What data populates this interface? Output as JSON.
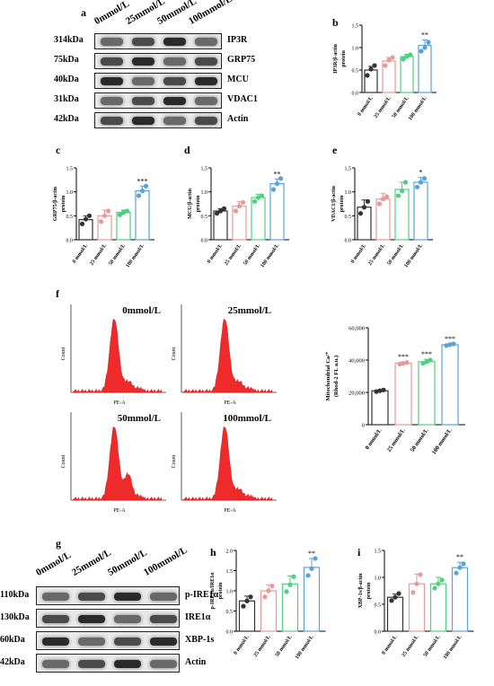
{
  "panels": {
    "a": "a",
    "b": "b",
    "c": "c",
    "d": "d",
    "e": "e",
    "f": "f",
    "g": "g",
    "h": "h",
    "i": "i"
  },
  "concentrations": [
    "0mmol/L",
    "25mmol/L",
    "50mmol/L",
    "100mmol/L"
  ],
  "blot_a": {
    "rows": [
      {
        "kda": "314kDa",
        "protein": "IP3R"
      },
      {
        "kda": "75kDa",
        "protein": "GRP75"
      },
      {
        "kda": "40kDa",
        "protein": "MCU"
      },
      {
        "kda": "31kDa",
        "protein": "VDAC1"
      },
      {
        "kda": "42kDa",
        "protein": "Actin"
      }
    ]
  },
  "blot_g": {
    "rows": [
      {
        "kda": "110kDa",
        "protein": "p-IRE1α"
      },
      {
        "kda": "130kDa",
        "protein": "IRE1α"
      },
      {
        "kda": "60kDa",
        "protein": "XBP-1s"
      },
      {
        "kda": "42kDa",
        "protein": "Actin"
      }
    ]
  },
  "flow": {
    "titles": [
      "0mmol/L",
      "25mmol/L",
      "50mmol/L",
      "100mmol/L"
    ],
    "x_axis": "PE-A",
    "y_axis": "Count"
  },
  "colors": {
    "c0": "#333333",
    "c25": "#e89a9a",
    "c50": "#4fcf7f",
    "c100": "#5aa2d8",
    "hist": "#ee2a2a"
  },
  "chart_data": [
    {
      "panel": "b",
      "type": "bar",
      "ylabel": "IP3R/β-actin protein",
      "categories": [
        "0 mmol/L",
        "25 mmol/L",
        "50 mmol/L",
        "100 mmol/L"
      ],
      "values": [
        0.5,
        0.7,
        0.8,
        1.05
      ],
      "errors": [
        0.08,
        0.08,
        0.05,
        0.12
      ],
      "points": [
        [
          0.38,
          0.52,
          0.6
        ],
        [
          0.6,
          0.72,
          0.78
        ],
        [
          0.74,
          0.8,
          0.84
        ],
        [
          0.92,
          1.0,
          1.12
        ]
      ],
      "ylim": [
        0,
        1.5
      ],
      "ticks": [
        "0.0",
        "0.5",
        "1.0",
        "1.5"
      ],
      "tickvals": [
        0,
        0.5,
        1,
        1.5
      ],
      "sig": [
        "",
        "",
        "",
        "**"
      ]
    },
    {
      "panel": "c",
      "type": "bar",
      "ylabel": "GRP75/β-actin protein",
      "categories": [
        "0 mmol/L",
        "25 mmol/L",
        "50 mmol/L",
        "100 mmol/L"
      ],
      "values": [
        0.42,
        0.5,
        0.57,
        1.02
      ],
      "errors": [
        0.08,
        0.12,
        0.05,
        0.1
      ],
      "points": [
        [
          0.33,
          0.43,
          0.5
        ],
        [
          0.38,
          0.5,
          0.6
        ],
        [
          0.52,
          0.57,
          0.6
        ],
        [
          0.92,
          1.02,
          1.12
        ]
      ],
      "ylim": [
        0,
        1.5
      ],
      "ticks": [
        "0.0",
        "0.5",
        "1.0",
        "1.5"
      ],
      "tickvals": [
        0,
        0.5,
        1,
        1.5
      ],
      "sig": [
        "",
        "",
        "",
        "***"
      ]
    },
    {
      "panel": "d",
      "type": "bar",
      "ylabel": "MCU/β-actin protein",
      "categories": [
        "0 mmol/L",
        "25 mmol/L",
        "50 mmol/L",
        "100 mmol/L"
      ],
      "values": [
        0.6,
        0.7,
        0.88,
        1.17
      ],
      "errors": [
        0.05,
        0.1,
        0.07,
        0.1
      ],
      "points": [
        [
          0.55,
          0.6,
          0.65
        ],
        [
          0.6,
          0.7,
          0.78
        ],
        [
          0.8,
          0.88,
          0.92
        ],
        [
          1.05,
          1.17,
          1.28
        ]
      ],
      "ylim": [
        0,
        1.5
      ],
      "ticks": [
        "0.0",
        "0.5",
        "1.0",
        "1.5"
      ],
      "tickvals": [
        0,
        0.5,
        1,
        1.5
      ],
      "sig": [
        "",
        "",
        "",
        "**"
      ]
    },
    {
      "panel": "e",
      "type": "bar",
      "ylabel": "VDAC1/β-actin protein",
      "categories": [
        "0 mmol/L",
        "25 mmol/L",
        "50 mmol/L",
        "100 mmol/L"
      ],
      "values": [
        0.68,
        0.85,
        1.05,
        1.2
      ],
      "errors": [
        0.15,
        0.12,
        0.15,
        0.1
      ],
      "points": [
        [
          0.55,
          0.68,
          0.8
        ],
        [
          0.75,
          0.85,
          0.9
        ],
        [
          0.92,
          1.02,
          1.2
        ],
        [
          1.1,
          1.2,
          1.28
        ]
      ],
      "ylim": [
        0,
        1.5
      ],
      "ticks": [
        "0.0",
        "0.5",
        "1.0",
        "1.5"
      ],
      "tickvals": [
        0,
        0.5,
        1,
        1.5
      ],
      "sig": [
        "",
        "",
        "",
        "*"
      ]
    },
    {
      "panel": "f",
      "type": "bar",
      "ylabel": "Mitochondrial Ca²⁺ (Rhod-2 FL a.u.)",
      "categories": [
        "0 mmol/L",
        "25 mmol/L",
        "50 mmol/L",
        "100 mmol/L"
      ],
      "values": [
        21000,
        38000,
        39000,
        49500
      ],
      "errors": [
        600,
        800,
        1500,
        600
      ],
      "points": [
        [
          20500,
          21000,
          21500
        ],
        [
          37500,
          38000,
          38500
        ],
        [
          38000,
          39000,
          40000
        ],
        [
          49000,
          49500,
          50000
        ]
      ],
      "ylim": [
        0,
        60000
      ],
      "ticks": [
        "0",
        "20,000",
        "40,000",
        "60,000"
      ],
      "tickvals": [
        0,
        20000,
        40000,
        60000
      ],
      "sig": [
        "",
        "***",
        "***",
        "***"
      ]
    },
    {
      "panel": "h",
      "type": "bar",
      "ylabel": "p-IRE1α/IRE1α protein",
      "categories": [
        "0 mmol/L",
        "25 mmol/L",
        "50 mmol/L",
        "100 mmol/L"
      ],
      "values": [
        0.75,
        1.0,
        1.17,
        1.58
      ],
      "errors": [
        0.12,
        0.15,
        0.2,
        0.22
      ],
      "points": [
        [
          0.62,
          0.75,
          0.85
        ],
        [
          0.85,
          1.0,
          1.12
        ],
        [
          0.98,
          1.15,
          1.35
        ],
        [
          1.38,
          1.55,
          1.8
        ]
      ],
      "ylim": [
        0,
        2.0
      ],
      "ticks": [
        "0.0",
        "0.5",
        "1.0",
        "1.5",
        "2.0"
      ],
      "tickvals": [
        0,
        0.5,
        1,
        1.5,
        2
      ],
      "sig": [
        "",
        "",
        "",
        "**"
      ]
    },
    {
      "panel": "i",
      "type": "bar",
      "ylabel": "XBP-1s/β-actin protein",
      "categories": [
        "0 mmol/L",
        "25 mmol/L",
        "50 mmol/L",
        "100 mmol/L"
      ],
      "values": [
        0.63,
        0.88,
        0.88,
        1.18
      ],
      "errors": [
        0.06,
        0.18,
        0.12,
        0.1
      ],
      "points": [
        [
          0.57,
          0.63,
          0.7
        ],
        [
          0.72,
          0.88,
          1.05
        ],
        [
          0.8,
          0.88,
          0.95
        ],
        [
          1.08,
          1.18,
          1.25
        ]
      ],
      "ylim": [
        0,
        1.5
      ],
      "ticks": [
        "0.0",
        "0.5",
        "1.0",
        "1.5"
      ],
      "tickvals": [
        0,
        0.5,
        1,
        1.5
      ],
      "sig": [
        "",
        "",
        "",
        "**"
      ]
    }
  ]
}
